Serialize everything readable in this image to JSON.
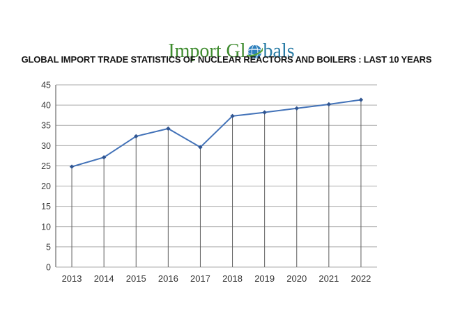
{
  "page": {
    "background": "#ffffff"
  },
  "logo": {
    "full_text": "Import Globals",
    "part1": "Import Gl",
    "part2": "bals",
    "part1_color": "#3e8b2e",
    "part2_color": "#2a7ca5",
    "globe_blue": "#2e80bd",
    "globe_grid_white": "#ffffff",
    "globe_swoosh_green": "#55a637"
  },
  "title": {
    "text": "GLOBAL IMPORT TRADE STATISTICS OF NUCLEAR REACTORS AND BOILERS : LAST 10 YEARS",
    "color": "#151515"
  },
  "chart_data": {
    "type": "line",
    "title": "",
    "xlabel": "",
    "ylabel": "",
    "categories": [
      "2013",
      "2014",
      "2015",
      "2016",
      "2017",
      "2018",
      "2019",
      "2020",
      "2021",
      "2022"
    ],
    "values": [
      24.8,
      27.1,
      32.3,
      34.2,
      29.6,
      37.3,
      38.2,
      39.2,
      40.2,
      41.3
    ],
    "ylim": [
      0,
      45
    ],
    "yticks": [
      0,
      5,
      10,
      15,
      20,
      25,
      30,
      35,
      40,
      45
    ],
    "grid": "horizontal gridlines; vertical drop lines from each data point to baseline; no legend",
    "legend": "none",
    "line_color": "#4272b8",
    "marker": "diamond",
    "marker_color": "#305591",
    "h_grid_color": "#a9a9a9",
    "drop_line_color": "#5e5e5e",
    "axis_color": "#6b6b6b",
    "tick_label_color": "#3c3c3c",
    "x_label_color": "#333333"
  }
}
